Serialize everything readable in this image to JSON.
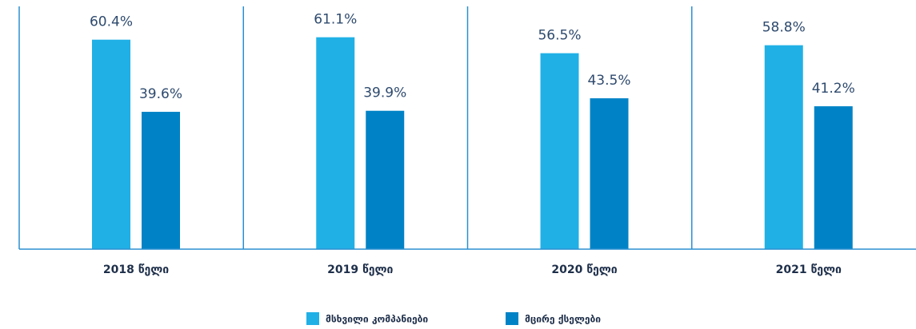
{
  "chart_data": {
    "type": "bar",
    "categories": [
      "2018 წელი",
      "2019 წელი",
      "2020 წელი",
      "2021 წელი"
    ],
    "series": [
      {
        "name": "მსხვილი კომპანიები",
        "color": "#20b0e6",
        "values": [
          60.4,
          61.1,
          56.5,
          58.8
        ],
        "value_labels": [
          "60.4%",
          "61.1%",
          "56.5%",
          "58.8%"
        ]
      },
      {
        "name": "მცირე ქსელები",
        "color": "#0083c6",
        "values": [
          39.6,
          39.9,
          43.5,
          41.2
        ],
        "value_labels": [
          "39.6%",
          "39.9%",
          "43.5%",
          "41.2%"
        ]
      }
    ],
    "ylim": [
      0,
      70
    ]
  }
}
